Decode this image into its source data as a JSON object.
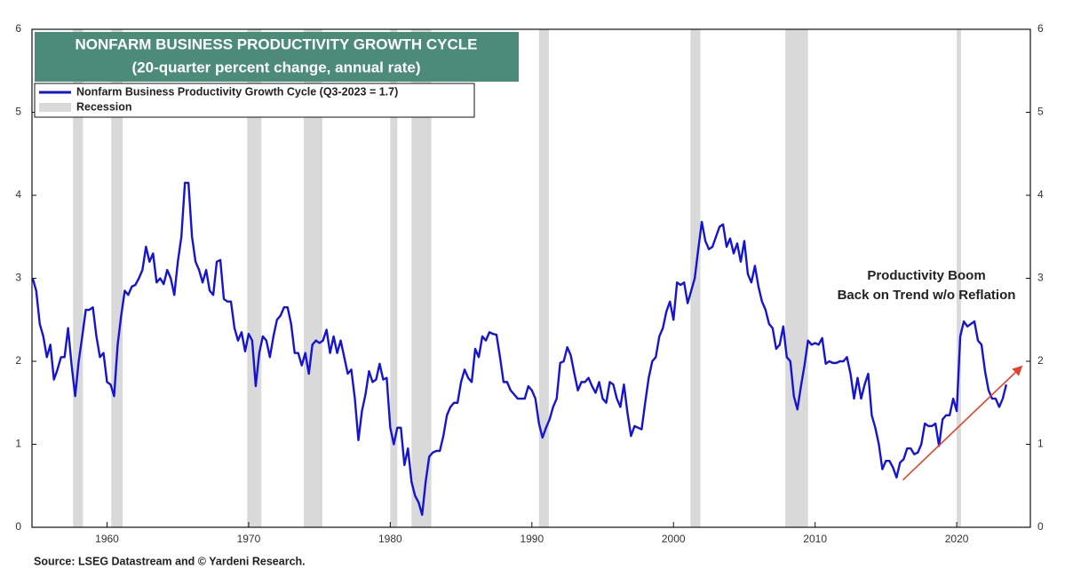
{
  "chart_data": {
    "type": "line",
    "title": "NONFARM BUSINESS PRODUCTIVITY GROWTH CYCLE",
    "subtitle": "(20-quarter percent change, annual rate)",
    "source": "Source: LSEG Datastream and © Yardeni Research.",
    "xlim": [
      1954.7,
      2025.2
    ],
    "xticks": [
      1960,
      1970,
      1980,
      1990,
      2000,
      2010,
      2020
    ],
    "ylim": [
      0,
      6
    ],
    "yticks": [
      0,
      1,
      2,
      3,
      4,
      5,
      6
    ],
    "x": [
      1954.75,
      1955,
      1955.25,
      1955.5,
      1955.75,
      1956,
      1956.25,
      1956.5,
      1956.75,
      1957,
      1957.25,
      1957.5,
      1957.75,
      1958,
      1958.25,
      1958.5,
      1958.75,
      1959,
      1959.25,
      1959.5,
      1959.75,
      1960,
      1960.25,
      1960.5,
      1960.75,
      1961,
      1961.25,
      1961.5,
      1961.75,
      1962,
      1962.25,
      1962.5,
      1962.75,
      1963,
      1963.25,
      1963.5,
      1963.75,
      1964,
      1964.25,
      1964.5,
      1964.75,
      1965,
      1965.25,
      1965.5,
      1965.75,
      1966,
      1966.25,
      1966.5,
      1966.75,
      1967,
      1967.25,
      1967.5,
      1967.75,
      1968,
      1968.25,
      1968.5,
      1968.75,
      1969,
      1969.25,
      1969.5,
      1969.75,
      1970,
      1970.25,
      1970.5,
      1970.75,
      1971,
      1971.25,
      1971.5,
      1971.75,
      1972,
      1972.25,
      1972.5,
      1972.75,
      1973,
      1973.25,
      1973.5,
      1973.75,
      1974,
      1974.25,
      1974.5,
      1974.75,
      1975,
      1975.25,
      1975.5,
      1975.75,
      1976,
      1976.25,
      1976.5,
      1976.75,
      1977,
      1977.25,
      1977.5,
      1977.75,
      1978,
      1978.25,
      1978.5,
      1978.75,
      1979,
      1979.25,
      1979.5,
      1979.75,
      1980,
      1980.25,
      1980.5,
      1980.75,
      1981,
      1981.25,
      1981.5,
      1981.75,
      1982,
      1982.25,
      1982.5,
      1982.75,
      1983,
      1983.25,
      1983.5,
      1983.75,
      1984,
      1984.25,
      1984.5,
      1984.75,
      1985,
      1985.25,
      1985.5,
      1985.75,
      1986,
      1986.25,
      1986.5,
      1986.75,
      1987,
      1987.25,
      1987.5,
      1987.75,
      1988,
      1988.25,
      1988.5,
      1988.75,
      1989,
      1989.25,
      1989.5,
      1989.75,
      1990,
      1990.25,
      1990.5,
      1990.75,
      1991,
      1991.25,
      1991.5,
      1991.75,
      1992,
      1992.25,
      1992.5,
      1992.75,
      1993,
      1993.25,
      1993.5,
      1993.75,
      1994,
      1994.25,
      1994.5,
      1994.75,
      1995,
      1995.25,
      1995.5,
      1995.75,
      1996,
      1996.25,
      1996.5,
      1996.75,
      1997,
      1997.25,
      1997.5,
      1997.75,
      1998,
      1998.25,
      1998.5,
      1998.75,
      1999,
      1999.25,
      1999.5,
      1999.75,
      2000,
      2000.25,
      2000.5,
      2000.75,
      2001,
      2001.25,
      2001.5,
      2001.75,
      2002,
      2002.25,
      2002.5,
      2002.75,
      2003,
      2003.25,
      2003.5,
      2003.75,
      2004,
      2004.25,
      2004.5,
      2004.75,
      2005,
      2005.25,
      2005.5,
      2005.75,
      2006,
      2006.25,
      2006.5,
      2006.75,
      2007,
      2007.25,
      2007.5,
      2007.75,
      2008,
      2008.25,
      2008.5,
      2008.75,
      2009,
      2009.25,
      2009.5,
      2009.75,
      2010,
      2010.25,
      2010.5,
      2010.75,
      2011,
      2011.25,
      2011.5,
      2011.75,
      2012,
      2012.25,
      2012.5,
      2012.75,
      2013,
      2013.25,
      2013.5,
      2013.75,
      2014,
      2014.25,
      2014.5,
      2014.75,
      2015,
      2015.25,
      2015.5,
      2015.75,
      2016,
      2016.25,
      2016.5,
      2016.75,
      2017,
      2017.25,
      2017.5,
      2017.75,
      2018,
      2018.25,
      2018.5,
      2018.75,
      2019,
      2019.25,
      2019.5,
      2019.75,
      2020,
      2020.25,
      2020.5,
      2020.75,
      2021,
      2021.25,
      2021.5,
      2021.75,
      2022,
      2022.25,
      2022.5,
      2022.75,
      2023,
      2023.25,
      2023.5
    ],
    "series": [
      {
        "name": "Nonfarm Business Productivity Growth Cycle (Q3-2023 = 1.7)",
        "color": "#1414d2",
        "values": [
          3.0,
          2.85,
          2.45,
          2.3,
          2.05,
          2.2,
          1.78,
          1.9,
          2.05,
          2.05,
          2.4,
          1.95,
          1.58,
          2.0,
          2.3,
          2.62,
          2.62,
          2.65,
          2.3,
          2.05,
          2.1,
          1.75,
          1.72,
          1.58,
          2.2,
          2.55,
          2.85,
          2.8,
          2.9,
          2.92,
          3.0,
          3.1,
          3.38,
          3.2,
          3.3,
          2.95,
          3.0,
          2.93,
          3.1,
          3.0,
          2.8,
          3.2,
          3.5,
          4.15,
          4.15,
          3.5,
          3.2,
          3.1,
          2.95,
          3.1,
          2.85,
          2.8,
          3.2,
          3.22,
          2.75,
          2.72,
          2.72,
          2.4,
          2.25,
          2.35,
          2.12,
          2.33,
          2.25,
          1.7,
          2.1,
          2.3,
          2.25,
          2.05,
          2.3,
          2.5,
          2.55,
          2.65,
          2.65,
          2.45,
          2.1,
          2.1,
          1.95,
          2.1,
          1.85,
          2.2,
          2.25,
          2.22,
          2.25,
          2.38,
          2.1,
          2.3,
          2.1,
          2.25,
          2.05,
          1.85,
          1.9,
          1.55,
          1.05,
          1.4,
          1.6,
          1.88,
          1.75,
          1.78,
          1.97,
          1.78,
          1.8,
          1.2,
          1.0,
          1.2,
          1.2,
          0.75,
          0.95,
          0.55,
          0.38,
          0.3,
          0.15,
          0.55,
          0.85,
          0.9,
          0.92,
          0.92,
          1.1,
          1.35,
          1.45,
          1.5,
          1.5,
          1.75,
          1.9,
          1.8,
          1.75,
          2.15,
          2.05,
          2.3,
          2.25,
          2.35,
          2.33,
          2.32,
          2.05,
          1.75,
          1.75,
          1.65,
          1.6,
          1.55,
          1.55,
          1.55,
          1.7,
          1.65,
          1.55,
          1.25,
          1.08,
          1.2,
          1.3,
          1.45,
          1.55,
          1.98,
          2.0,
          2.17,
          2.07,
          1.85,
          1.65,
          1.75,
          1.75,
          1.8,
          1.7,
          1.62,
          1.75,
          1.55,
          1.5,
          1.75,
          1.72,
          1.55,
          1.45,
          1.72,
          1.38,
          1.1,
          1.22,
          1.2,
          1.18,
          1.5,
          1.8,
          2.0,
          2.05,
          2.3,
          2.4,
          2.6,
          2.72,
          2.5,
          2.95,
          2.92,
          2.95,
          2.7,
          2.85,
          3.0,
          3.35,
          3.68,
          3.45,
          3.35,
          3.38,
          3.5,
          3.62,
          3.65,
          3.38,
          3.48,
          3.3,
          3.42,
          3.2,
          3.45,
          3.05,
          2.95,
          3.15,
          2.9,
          2.72,
          2.62,
          2.45,
          2.4,
          2.15,
          2.2,
          2.42,
          2.05,
          2.0,
          1.58,
          1.42,
          1.7,
          1.95,
          2.25,
          2.2,
          2.22,
          2.2,
          2.28,
          1.97,
          2.0,
          1.98,
          1.98,
          2.0,
          2.0,
          2.05,
          1.85,
          1.55,
          1.8,
          1.55,
          1.72,
          1.85,
          1.35,
          1.2,
          1.0,
          0.7,
          0.8,
          0.8,
          0.72,
          0.6,
          0.78,
          0.82,
          0.95,
          0.95,
          0.88,
          0.9,
          1.0,
          1.25,
          1.22,
          1.22,
          1.25,
          0.98,
          1.3,
          1.35,
          1.35,
          1.55,
          1.4,
          2.3,
          2.48,
          2.42,
          2.45,
          2.48,
          2.25,
          2.2,
          1.88,
          1.65,
          1.55,
          1.55,
          1.45,
          1.55,
          1.72
        ]
      }
    ],
    "recession_name": "Recession",
    "recession_color": "#d9d9d9",
    "recessions": [
      {
        "start": 1957.6,
        "end": 1958.3
      },
      {
        "start": 1960.3,
        "end": 1961.1
      },
      {
        "start": 1969.9,
        "end": 1970.9
      },
      {
        "start": 1973.9,
        "end": 1975.2
      },
      {
        "start": 1980.0,
        "end": 1980.5
      },
      {
        "start": 1981.5,
        "end": 1982.9
      },
      {
        "start": 1990.5,
        "end": 1991.2
      },
      {
        "start": 2001.2,
        "end": 2001.9
      },
      {
        "start": 2007.9,
        "end": 2009.5
      },
      {
        "start": 2020.0,
        "end": 2020.3
      }
    ],
    "annotation": {
      "lines": [
        "Productivity Boom",
        "Back on Trend w/o Reflation"
      ],
      "color": "#e8402a",
      "arrow": {
        "x": [
          2016.2,
          2024.6
        ],
        "y": [
          0.57,
          1.94
        ]
      }
    }
  }
}
